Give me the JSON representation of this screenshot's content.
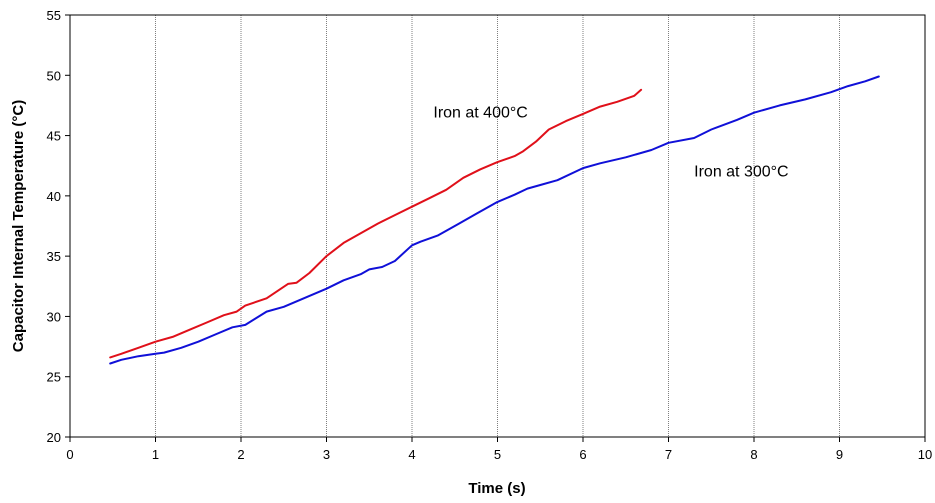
{
  "chart_data": {
    "type": "line",
    "title": "",
    "xlabel": "Time (s)",
    "ylabel": "Capacitor Internal Temperature (°C)",
    "xlim": [
      0,
      10
    ],
    "ylim": [
      20,
      55
    ],
    "xticks": [
      "0",
      "1",
      "2",
      "3",
      "4",
      "5",
      "6",
      "7",
      "8",
      "9",
      "10"
    ],
    "yticks": [
      "20",
      "25",
      "30",
      "35",
      "40",
      "45",
      "50",
      "55"
    ],
    "grid": "vertical",
    "legend": "none",
    "series": [
      {
        "color": "#e0101a",
        "x": [
          0.47,
          0.6,
          0.8,
          1.0,
          1.2,
          1.4,
          1.6,
          1.8,
          1.95,
          2.05,
          2.3,
          2.55,
          2.65,
          2.8,
          3.0,
          3.2,
          3.4,
          3.6,
          3.8,
          4.0,
          4.2,
          4.4,
          4.6,
          4.8,
          5.0,
          5.2,
          5.3,
          5.45,
          5.6,
          5.8,
          6.0,
          6.2,
          6.4,
          6.6,
          6.68
        ],
        "y": [
          26.6,
          26.9,
          27.4,
          27.9,
          28.3,
          28.9,
          29.5,
          30.1,
          30.4,
          30.9,
          31.5,
          32.7,
          32.8,
          33.6,
          35.0,
          36.1,
          36.9,
          37.7,
          38.4,
          39.1,
          39.8,
          40.5,
          41.5,
          42.2,
          42.8,
          43.3,
          43.7,
          44.5,
          45.5,
          46.2,
          46.8,
          47.4,
          47.8,
          48.3,
          48.8
        ]
      },
      {
        "color": "#1010d8",
        "x": [
          0.47,
          0.6,
          0.8,
          1.0,
          1.1,
          1.3,
          1.5,
          1.7,
          1.9,
          2.05,
          2.3,
          2.5,
          2.8,
          3.0,
          3.2,
          3.4,
          3.5,
          3.65,
          3.8,
          4.0,
          4.1,
          4.3,
          4.55,
          4.75,
          5.0,
          5.2,
          5.35,
          5.5,
          5.7,
          6.0,
          6.2,
          6.5,
          6.8,
          7.0,
          7.3,
          7.5,
          7.8,
          8.0,
          8.3,
          8.6,
          8.9,
          9.1,
          9.3,
          9.46
        ],
        "y": [
          26.1,
          26.4,
          26.7,
          26.9,
          27.0,
          27.4,
          27.9,
          28.5,
          29.1,
          29.3,
          30.4,
          30.8,
          31.7,
          32.3,
          33.0,
          33.5,
          33.9,
          34.1,
          34.6,
          35.9,
          36.2,
          36.7,
          37.7,
          38.5,
          39.5,
          40.1,
          40.6,
          40.9,
          41.3,
          42.3,
          42.7,
          43.2,
          43.8,
          44.4,
          44.8,
          45.5,
          46.3,
          46.9,
          47.5,
          48.0,
          48.6,
          49.1,
          49.5,
          49.9
        ]
      }
    ],
    "annotations": [
      {
        "text": "Iron at 400°C",
        "x": 4.25,
        "y": 46.5
      },
      {
        "text": "Iron at 300°C",
        "x": 7.3,
        "y": 41.6
      }
    ]
  }
}
